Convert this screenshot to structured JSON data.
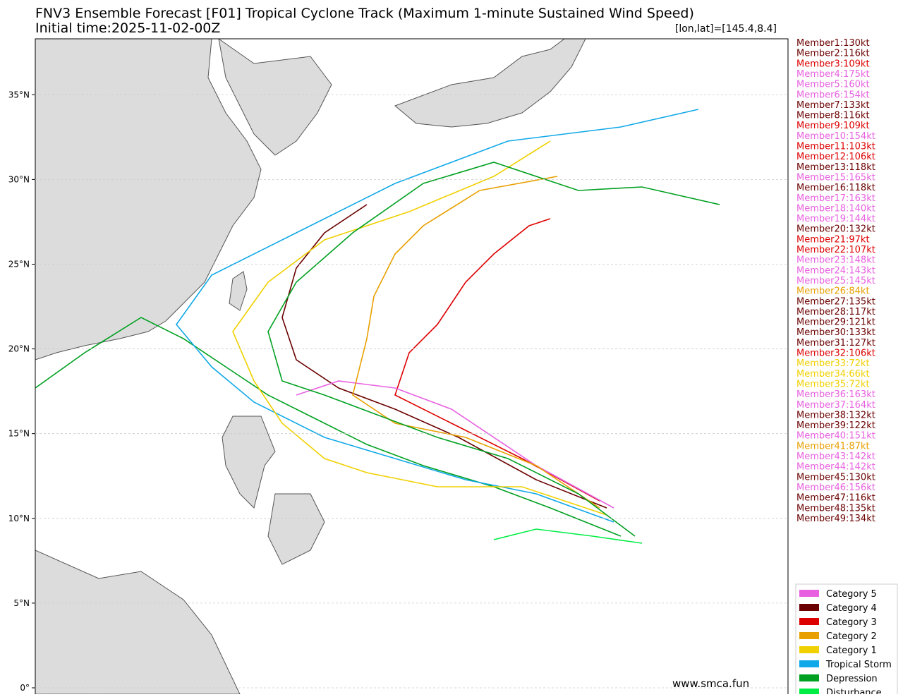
{
  "header": {
    "title": "FNV3 Ensemble Forecast [F01] Tropical Cyclone Track (Maximum 1-minute Sustained Wind Speed)",
    "subtitle": "Initial time:2025-11-02-00Z",
    "position": "[lon,lat]=[145.4,8.4]"
  },
  "map": {
    "ylim": [
      0,
      38.3
    ],
    "yticks": [
      {
        "value": 0,
        "label": "0°"
      },
      {
        "value": 5,
        "label": "5°N"
      },
      {
        "value": 10,
        "label": "10°N"
      },
      {
        "value": 15,
        "label": "15°N"
      },
      {
        "value": 20,
        "label": "20°N"
      },
      {
        "value": 25,
        "label": "25°N"
      },
      {
        "value": 30,
        "label": "30°N"
      },
      {
        "value": 35,
        "label": "35°N"
      }
    ],
    "grid": true,
    "watermark": "www.smca.fun"
  },
  "members": [
    {
      "label": "Member1:130kt",
      "color": "#6b0000"
    },
    {
      "label": "Member2:116kt",
      "color": "#6b0000"
    },
    {
      "label": "Member3:109kt",
      "color": "#dd0000"
    },
    {
      "label": "Member4:175kt",
      "color": "#e860e0"
    },
    {
      "label": "Member5:160kt",
      "color": "#e860e0"
    },
    {
      "label": "Member6:154kt",
      "color": "#e860e0"
    },
    {
      "label": "Member7:133kt",
      "color": "#6b0000"
    },
    {
      "label": "Member8:116kt",
      "color": "#6b0000"
    },
    {
      "label": "Member9:109kt",
      "color": "#dd0000"
    },
    {
      "label": "Member10:154kt",
      "color": "#e860e0"
    },
    {
      "label": "Member11:103kt",
      "color": "#dd0000"
    },
    {
      "label": "Member12:106kt",
      "color": "#dd0000"
    },
    {
      "label": "Member13:118kt",
      "color": "#6b0000"
    },
    {
      "label": "Member15:165kt",
      "color": "#e860e0"
    },
    {
      "label": "Member16:118kt",
      "color": "#6b0000"
    },
    {
      "label": "Member17:163kt",
      "color": "#e860e0"
    },
    {
      "label": "Member18:140kt",
      "color": "#e860e0"
    },
    {
      "label": "Member19:144kt",
      "color": "#e860e0"
    },
    {
      "label": "Member20:132kt",
      "color": "#6b0000"
    },
    {
      "label": "Member21:97kt",
      "color": "#dd0000"
    },
    {
      "label": "Member22:107kt",
      "color": "#dd0000"
    },
    {
      "label": "Member23:148kt",
      "color": "#e860e0"
    },
    {
      "label": "Member24:143kt",
      "color": "#e860e0"
    },
    {
      "label": "Member25:145kt",
      "color": "#e860e0"
    },
    {
      "label": "Member26:84kt",
      "color": "#e8a000"
    },
    {
      "label": "Member27:135kt",
      "color": "#6b0000"
    },
    {
      "label": "Member28:117kt",
      "color": "#6b0000"
    },
    {
      "label": "Member29:121kt",
      "color": "#6b0000"
    },
    {
      "label": "Member30:133kt",
      "color": "#6b0000"
    },
    {
      "label": "Member31:127kt",
      "color": "#6b0000"
    },
    {
      "label": "Member32:106kt",
      "color": "#dd0000"
    },
    {
      "label": "Member33:72kt",
      "color": "#f0d000"
    },
    {
      "label": "Member34:66kt",
      "color": "#f0d000"
    },
    {
      "label": "Member35:72kt",
      "color": "#f0d000"
    },
    {
      "label": "Member36:163kt",
      "color": "#e860e0"
    },
    {
      "label": "Member37:164kt",
      "color": "#e860e0"
    },
    {
      "label": "Member38:132kt",
      "color": "#6b0000"
    },
    {
      "label": "Member39:122kt",
      "color": "#6b0000"
    },
    {
      "label": "Member40:151kt",
      "color": "#e860e0"
    },
    {
      "label": "Member41:87kt",
      "color": "#e8a000"
    },
    {
      "label": "Member43:142kt",
      "color": "#e860e0"
    },
    {
      "label": "Member44:142kt",
      "color": "#e860e0"
    },
    {
      "label": "Member45:130kt",
      "color": "#6b0000"
    },
    {
      "label": "Member46:156kt",
      "color": "#e860e0"
    },
    {
      "label": "Member47:116kt",
      "color": "#6b0000"
    },
    {
      "label": "Member48:135kt",
      "color": "#6b0000"
    },
    {
      "label": "Member49:134kt",
      "color": "#6b0000"
    }
  ],
  "legend": [
    {
      "label": "Category 5",
      "color": "#e860e0"
    },
    {
      "label": "Category 4",
      "color": "#6b0000"
    },
    {
      "label": "Category 3",
      "color": "#dd0000"
    },
    {
      "label": "Category 2",
      "color": "#e8a000"
    },
    {
      "label": "Category 1",
      "color": "#f0d000"
    },
    {
      "label": "Tropical Storm",
      "color": "#10a8e8"
    },
    {
      "label": "Depression",
      "color": "#00a020"
    },
    {
      "label": "Disturbance",
      "color": "#00ee44"
    }
  ]
}
